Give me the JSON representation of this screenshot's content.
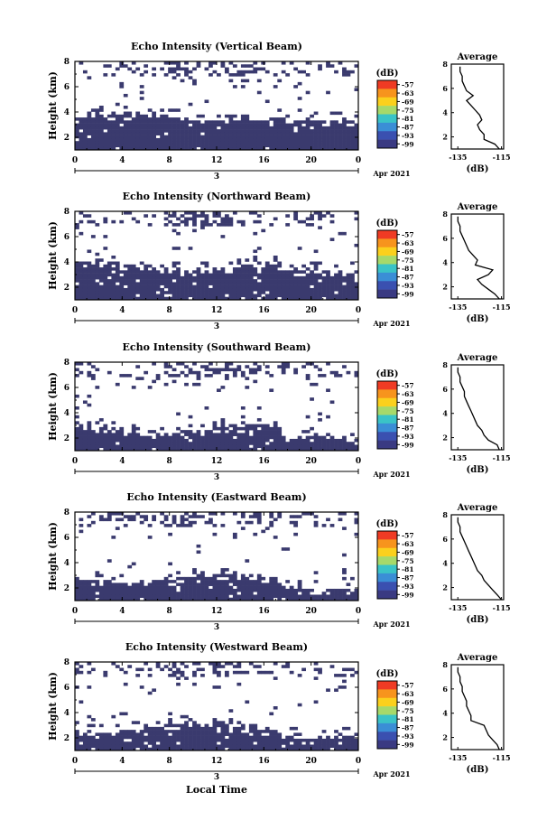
{
  "figure": {
    "date_label": "Apr 2021",
    "date_tick": "3",
    "xlabel": "Local Time",
    "ylabel": "Height (km)",
    "colorbar_unit": "(dB)",
    "colorbar_ticks": [
      "-57",
      "-63",
      "-69",
      "-75",
      "-81",
      "-87",
      "-93",
      "-99"
    ],
    "colorbar_colors": [
      "#ef3b24",
      "#f7941d",
      "#fbd01d",
      "#a6d96a",
      "#3ac3c7",
      "#3a8ed6",
      "#3a50b0",
      "#3a3a82"
    ],
    "avg_title": "Average",
    "avg_xlabel": "(dB)",
    "avg_xticks": [
      "-135",
      "-115"
    ],
    "avg_yticks": [
      "2",
      "4",
      "6",
      "8"
    ],
    "x_ticks": [
      "0",
      "4",
      "8",
      "12",
      "16",
      "20",
      "0"
    ],
    "y_ticks": [
      "2",
      "4",
      "6",
      "8"
    ],
    "echo_color": "#3a3a6e"
  },
  "chart_data": [
    {
      "type": "heatmap",
      "title": "Echo Intensity (Vertical Beam)",
      "xlim": [
        0,
        24
      ],
      "ylim": [
        1,
        8
      ],
      "solid_top_km": 3.6,
      "scatter_top_km": 8,
      "average_profile": {
        "height_km": [
          1.0,
          1.4,
          1.8,
          2.2,
          2.6,
          3.0,
          3.4,
          3.8,
          4.2,
          4.6,
          5.0,
          5.4,
          5.8,
          6.2,
          6.6,
          7.0,
          7.4,
          7.8
        ],
        "db": [
          -116,
          -118,
          -123,
          -123,
          -125,
          -126,
          -124,
          -125,
          -127,
          -129,
          -131,
          -128,
          -131,
          -132,
          -133,
          -133,
          -134,
          -134
        ]
      }
    },
    {
      "type": "heatmap",
      "title": "Echo Intensity (Northward Beam)",
      "xlim": [
        0,
        24
      ],
      "ylim": [
        1,
        8
      ],
      "solid_top_km": 3.7,
      "scatter_top_km": 8,
      "average_profile": {
        "height_km": [
          1.0,
          1.4,
          1.8,
          2.2,
          2.6,
          3.0,
          3.4,
          3.8,
          4.2,
          4.6,
          5.0,
          5.4,
          5.8,
          6.2,
          6.6,
          7.0,
          7.4,
          7.8
        ],
        "db": [
          -116,
          -118,
          -121,
          -124,
          -126,
          -121,
          -119,
          -127,
          -126,
          -128,
          -130,
          -131,
          -132,
          -133,
          -134,
          -134,
          -135,
          -135
        ]
      }
    },
    {
      "type": "heatmap",
      "title": "Echo Intensity (Southward Beam)",
      "xlim": [
        0,
        24
      ],
      "ylim": [
        1,
        8
      ],
      "solid_top_km": 2.8,
      "scatter_top_km": 8,
      "average_profile": {
        "height_km": [
          1.0,
          1.4,
          1.8,
          2.2,
          2.6,
          3.0,
          3.4,
          3.8,
          4.2,
          4.6,
          5.0,
          5.4,
          5.8,
          6.2,
          6.6,
          7.0,
          7.4,
          7.8
        ],
        "db": [
          -116,
          -117,
          -121,
          -123,
          -124,
          -126,
          -127,
          -128,
          -129,
          -130,
          -131,
          -132,
          -132,
          -133,
          -134,
          -134,
          -135,
          -135
        ]
      }
    },
    {
      "type": "heatmap",
      "title": "Echo Intensity (Eastward Beam)",
      "xlim": [
        0,
        24
      ],
      "ylim": [
        1,
        8
      ],
      "solid_top_km": 2.8,
      "scatter_top_km": 8,
      "average_profile": {
        "height_km": [
          1.0,
          1.4,
          1.8,
          2.2,
          2.6,
          3.0,
          3.4,
          3.8,
          4.2,
          4.6,
          5.0,
          5.4,
          5.8,
          6.2,
          6.6,
          7.0,
          7.4,
          7.8
        ],
        "db": [
          -115,
          -117,
          -119,
          -121,
          -123,
          -124,
          -126,
          -127,
          -128,
          -129,
          -130,
          -131,
          -132,
          -133,
          -134,
          -134,
          -135,
          -135
        ]
      }
    },
    {
      "type": "heatmap",
      "title": "Echo Intensity (Westward Beam)",
      "xlim": [
        0,
        24
      ],
      "ylim": [
        1,
        8
      ],
      "solid_top_km": 2.8,
      "scatter_top_km": 8,
      "average_profile": {
        "height_km": [
          1.0,
          1.4,
          1.8,
          2.2,
          2.6,
          3.0,
          3.4,
          3.8,
          4.2,
          4.6,
          5.0,
          5.4,
          5.8,
          6.2,
          6.6,
          7.0,
          7.4,
          7.8
        ],
        "db": [
          -116,
          -117,
          -119,
          -121,
          -122,
          -123,
          -129,
          -129,
          -130,
          -131,
          -131,
          -132,
          -133,
          -133,
          -134,
          -134,
          -135,
          -135
        ]
      }
    }
  ]
}
